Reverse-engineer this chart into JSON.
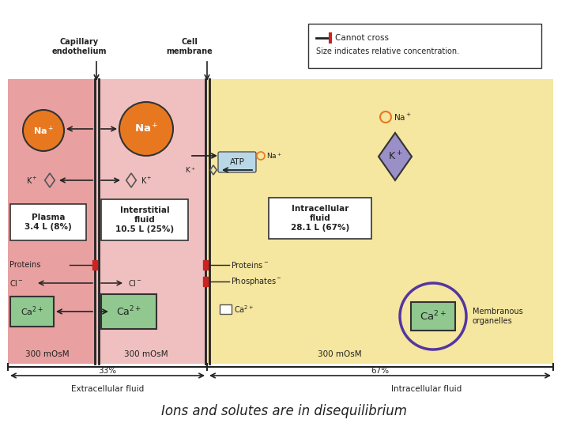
{
  "title": "Ions and solutes are in disequilibrium",
  "bg_plasma": "#e8a0a0",
  "bg_interstitial": "#f0c0c0",
  "bg_intracellular": "#f5e6a0",
  "na_color": "#e87820",
  "k_color": "#9b8fc8",
  "ca_color": "#90c890",
  "atp_color": "#b8d8e8",
  "purple_circle": "#5535a0",
  "plasma_label": "Plasma\n3.4 L (8%)",
  "interstitial_label": "Interstitial\nfluid\n10.5 L (25%)",
  "intracellular_label": "Intracellular\nfluid\n28.1 L (67%)",
  "capillary_label": "Capillary\nendothelium",
  "cell_membrane_label": "Cell\nmembrane",
  "cannot_cross_label": "Cannot cross",
  "size_indicates_label": "Size indicates relative concentration.",
  "osmolality": "300 mOsM",
  "extracellular_pct": "33%",
  "intracellular_pct": "67%",
  "extracellular_label": "Extracellular fluid",
  "intracellular_bottom_label": "Intracellular fluid",
  "membranous_label": "Membranous\norganelles",
  "red_bar": "#cc2222"
}
